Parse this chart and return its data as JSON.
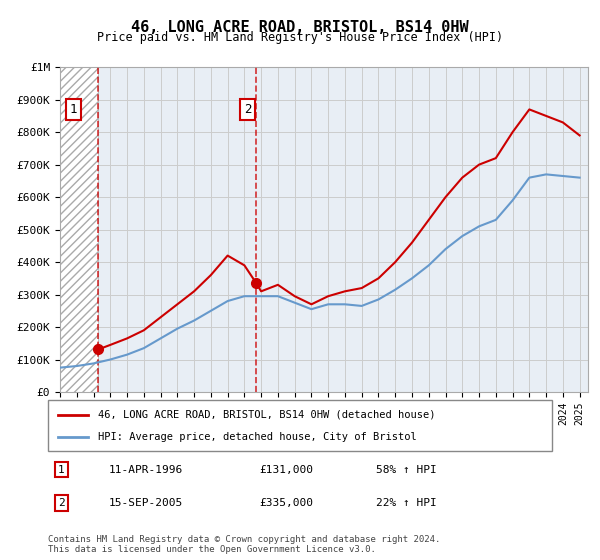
{
  "title": "46, LONG ACRE ROAD, BRISTOL, BS14 0HW",
  "subtitle": "Price paid vs. HM Land Registry's House Price Index (HPI)",
  "legend_line1": "46, LONG ACRE ROAD, BRISTOL, BS14 0HW (detached house)",
  "legend_line2": "HPI: Average price, detached house, City of Bristol",
  "footnote": "Contains HM Land Registry data © Crown copyright and database right 2024.\nThis data is licensed under the Open Government Licence v3.0.",
  "sale1_label": "1",
  "sale1_date": "11-APR-1996",
  "sale1_price": "£131,000",
  "sale1_hpi": "58% ↑ HPI",
  "sale2_label": "2",
  "sale2_date": "15-SEP-2005",
  "sale2_price": "£335,000",
  "sale2_hpi": "22% ↑ HPI",
  "sale1_year": 1996.28,
  "sale1_value": 131000,
  "sale2_year": 2005.71,
  "sale2_value": 335000,
  "red_color": "#cc0000",
  "blue_color": "#6699cc",
  "hatch_color": "#cccccc",
  "grid_color": "#cccccc",
  "ylim": [
    0,
    1000000
  ],
  "xlim_start": 1994.0,
  "xlim_end": 2025.5,
  "red_line": {
    "x": [
      1996.28,
      1997,
      1998,
      1999,
      2000,
      2001,
      2002,
      2003,
      2004,
      2005.0,
      2005.71,
      2006,
      2007,
      2008,
      2009,
      2010,
      2011,
      2012,
      2013,
      2014,
      2015,
      2016,
      2017,
      2018,
      2019,
      2020,
      2021,
      2022,
      2023,
      2024,
      2025
    ],
    "y": [
      131000,
      145000,
      165000,
      190000,
      230000,
      270000,
      310000,
      360000,
      420000,
      390000,
      335000,
      310000,
      330000,
      295000,
      270000,
      295000,
      310000,
      320000,
      350000,
      400000,
      460000,
      530000,
      600000,
      660000,
      700000,
      720000,
      800000,
      870000,
      850000,
      830000,
      790000
    ]
  },
  "blue_line": {
    "x": [
      1994,
      1995,
      1996,
      1997,
      1998,
      1999,
      2000,
      2001,
      2002,
      2003,
      2004,
      2005,
      2006,
      2007,
      2008,
      2009,
      2010,
      2011,
      2012,
      2013,
      2014,
      2015,
      2016,
      2017,
      2018,
      2019,
      2020,
      2021,
      2022,
      2023,
      2024,
      2025
    ],
    "y": [
      75000,
      80000,
      88000,
      100000,
      115000,
      135000,
      165000,
      195000,
      220000,
      250000,
      280000,
      295000,
      295000,
      295000,
      275000,
      255000,
      270000,
      270000,
      265000,
      285000,
      315000,
      350000,
      390000,
      440000,
      480000,
      510000,
      530000,
      590000,
      660000,
      670000,
      665000,
      660000
    ]
  }
}
